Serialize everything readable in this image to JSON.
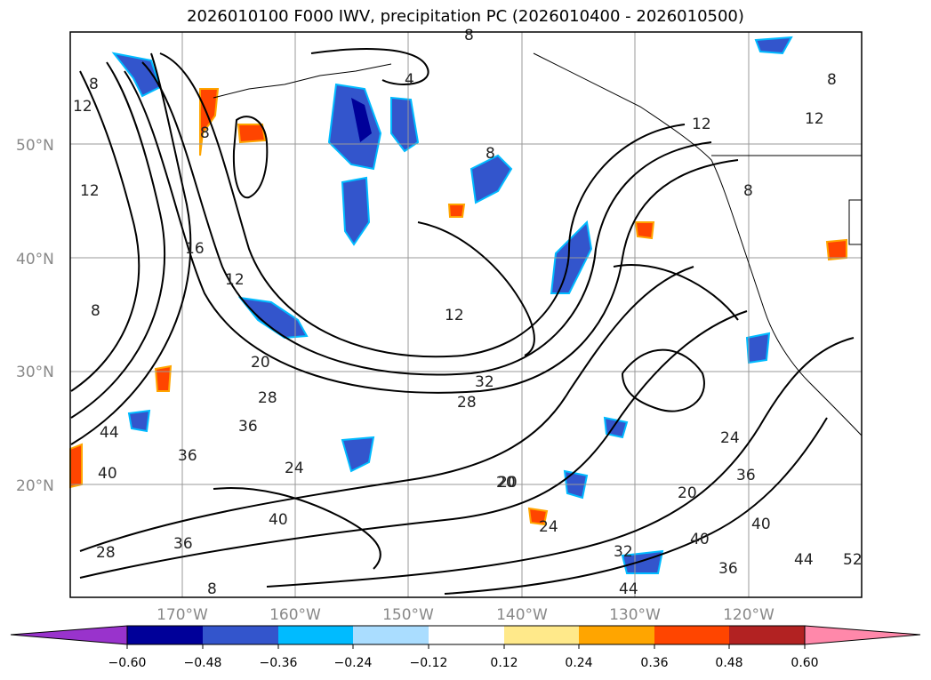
{
  "title": "2026010100 F000 IWV, precipitation PC (2026010400 - 2026010500)",
  "latitude_labels": [
    "50°N",
    "40°N",
    "30°N",
    "20°N"
  ],
  "longitude_labels": [
    "170°W",
    "160°W",
    "150°W",
    "140°W",
    "130°W",
    "120°W"
  ],
  "colorbar": {
    "colors": [
      "#9933cc",
      "#000099",
      "#3355cc",
      "#00bbff",
      "#aaddff",
      "#ffffff",
      "#ffe98a",
      "#ffa500",
      "#ff4500",
      "#b22222",
      "#ff88aa"
    ],
    "tick_labels": [
      "−0.60",
      "−0.48",
      "−0.36",
      "−0.24",
      "−0.12",
      "0.12",
      "0.24",
      "0.36",
      "0.48",
      "0.60"
    ]
  },
  "contour_labels": [
    "8",
    "12",
    "4",
    "8",
    "12",
    "8",
    "16",
    "12",
    "20",
    "28",
    "36",
    "44",
    "40",
    "36",
    "40",
    "28",
    "36",
    "24",
    "20",
    "28",
    "32",
    "24",
    "20",
    "24",
    "32",
    "40",
    "36",
    "44",
    "20",
    "8",
    "36",
    "40",
    "44",
    "52",
    "8",
    "12",
    "12",
    "8",
    "8",
    "12",
    "8"
  ],
  "colors": {
    "frame": "#000000",
    "grid": "#999999",
    "tick_text": "#888888"
  }
}
